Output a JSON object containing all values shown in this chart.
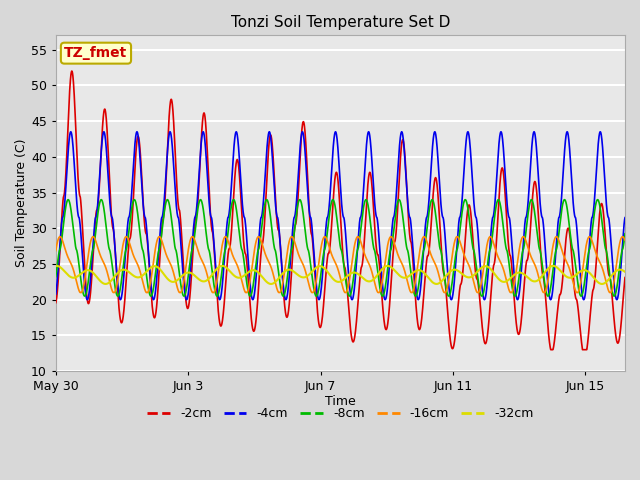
{
  "title": "Tonzi Soil Temperature Set D",
  "xlabel": "Time",
  "ylabel": "Soil Temperature (C)",
  "ylim": [
    10,
    57
  ],
  "yticks": [
    10,
    15,
    20,
    25,
    30,
    35,
    40,
    45,
    50,
    55
  ],
  "background_color": "#d8d8d8",
  "plot_bg_color": "#e8e8e8",
  "grid_color": "#ffffff",
  "label_box": "TZ_fmet",
  "label_box_color": "#ffffcc",
  "label_box_text_color": "#cc0000",
  "label_box_edge_color": "#bbaa00",
  "lines": [
    {
      "label": "-2cm",
      "color": "#dd0000",
      "lw": 1.2
    },
    {
      "label": "-4cm",
      "color": "#0000ee",
      "lw": 1.2
    },
    {
      "label": "-8cm",
      "color": "#00bb00",
      "lw": 1.2
    },
    {
      "label": "-16cm",
      "color": "#ff8800",
      "lw": 1.2
    },
    {
      "label": "-32cm",
      "color": "#dddd00",
      "lw": 1.5
    }
  ],
  "xtick_positions": [
    0,
    4,
    8,
    12,
    16
  ],
  "xtick_labels": [
    "May 30",
    "Jun 3",
    "Jun 7",
    "Jun 11",
    "Jun 15"
  ],
  "xlim": [
    0,
    17.2
  ]
}
